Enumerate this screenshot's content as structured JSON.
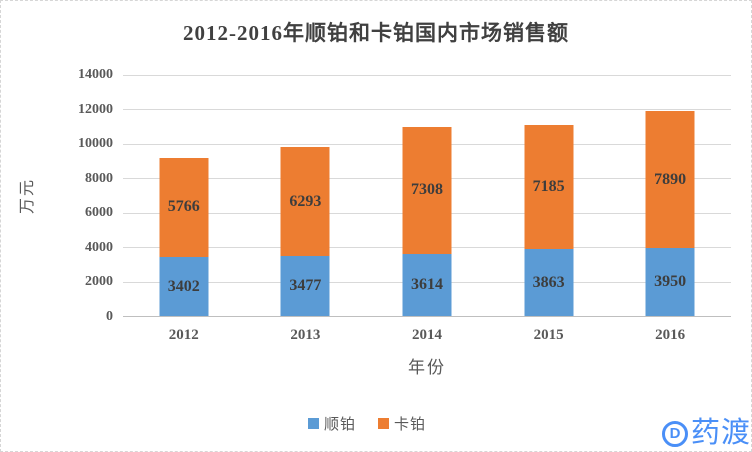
{
  "chart_data": {
    "type": "bar",
    "stacked": true,
    "title": "2012-2016年顺铂和卡铂国内市场销售额",
    "xlabel": "年份",
    "ylabel": "万元",
    "categories": [
      "2012",
      "2013",
      "2014",
      "2015",
      "2016"
    ],
    "series": [
      {
        "name": "顺铂",
        "color": "#5B9BD5",
        "values": [
          3402,
          3477,
          3614,
          3863,
          3950
        ]
      },
      {
        "name": "卡铂",
        "color": "#ED7D31",
        "values": [
          5766,
          6293,
          7308,
          7185,
          7890
        ]
      }
    ],
    "ylim": [
      0,
      14000
    ],
    "ytick_step": 2000,
    "ytick_labels": [
      "0",
      "2000",
      "4000",
      "6000",
      "8000",
      "10000",
      "12000",
      "14000"
    ],
    "grid": true,
    "legend_position": "bottom",
    "colors": {
      "title_text": "#404040",
      "axis_text": "#595959",
      "data_label_text": "#3d3d3d",
      "gridline": "#d9d9d9",
      "axis_line": "#bfbfbf"
    }
  },
  "watermark": {
    "icon": "D",
    "text": "药渡",
    "color": "#4a8ff7"
  }
}
